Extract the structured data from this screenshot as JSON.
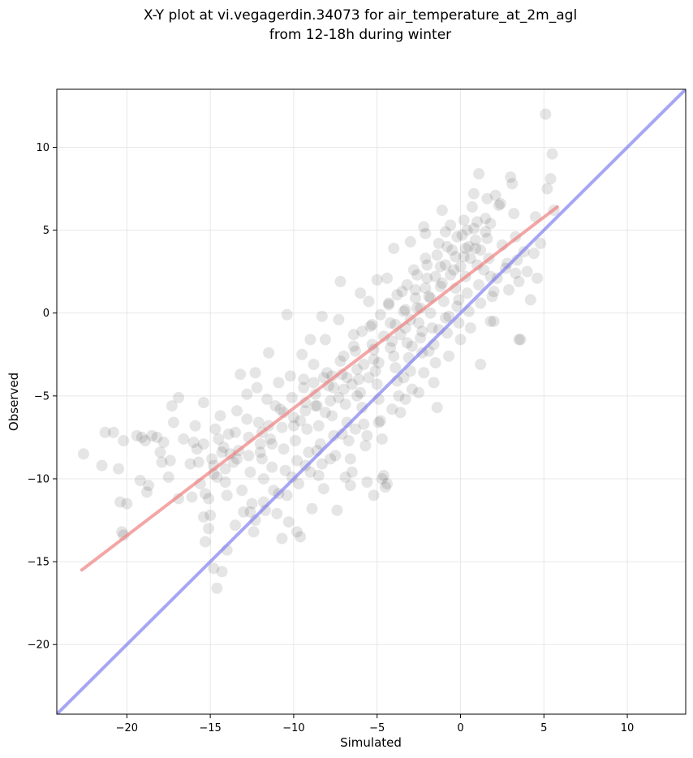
{
  "chart_data": {
    "type": "scatter",
    "title": [
      "X-Y plot at vi.vegagerdin.34073 for air_temperature_at_2m_agl",
      "from 12-18h during winter"
    ],
    "xlabel": "Simulated",
    "ylabel": "Observed",
    "xlim": [
      -24.2,
      13.5
    ],
    "ylim": [
      -24.2,
      13.5
    ],
    "xticks": [
      -20,
      -15,
      -10,
      -5,
      0,
      5,
      10
    ],
    "yticks": [
      -20,
      -15,
      -10,
      -5,
      0,
      5,
      10
    ],
    "xtick_labels": [
      "−20",
      "−15",
      "−10",
      "−5",
      "0",
      "5",
      "10"
    ],
    "ytick_labels": [
      "−20",
      "−15",
      "−10",
      "−5",
      "0",
      "5",
      "10"
    ],
    "grid": true,
    "colors": {
      "points": "#000000",
      "fit_line": "#f08080",
      "identity_line": "#8080f0"
    },
    "fit_line": {
      "x": [
        -22.7,
        5.8
      ],
      "y": [
        -15.5,
        6.4
      ]
    },
    "identity_line": {
      "x": [
        -24.2,
        13.5
      ],
      "y": [
        -24.2,
        13.5
      ]
    },
    "points": [
      [
        -22.6,
        -8.5
      ],
      [
        -21.5,
        -9.2
      ],
      [
        -21.3,
        -7.2
      ],
      [
        -20.8,
        -7.2
      ],
      [
        -20.5,
        -9.4
      ],
      [
        -20.2,
        -7.7
      ],
      [
        -20.4,
        -11.4
      ],
      [
        -20.0,
        -11.5
      ],
      [
        -20.2,
        -13.4
      ],
      [
        -20.3,
        -13.2
      ],
      [
        -19.4,
        -7.4
      ],
      [
        -19.1,
        -7.5
      ],
      [
        -18.9,
        -7.7
      ],
      [
        -18.7,
        -10.4
      ],
      [
        -19.2,
        -10.1
      ],
      [
        -18.8,
        -10.8
      ],
      [
        -18.5,
        -7.4
      ],
      [
        -18.2,
        -7.5
      ],
      [
        -17.8,
        -7.8
      ],
      [
        -18.0,
        -8.4
      ],
      [
        -17.9,
        -9.0
      ],
      [
        -17.4,
        -8.9
      ],
      [
        -17.5,
        -9.9
      ],
      [
        -17.2,
        -6.6
      ],
      [
        -17.3,
        -5.6
      ],
      [
        -16.9,
        -5.1
      ],
      [
        -16.6,
        -7.6
      ],
      [
        -16.2,
        -9.1
      ],
      [
        -16.0,
        -7.8
      ],
      [
        -15.9,
        -6.8
      ],
      [
        -15.7,
        -9.0
      ],
      [
        -15.8,
        -8.2
      ],
      [
        -15.6,
        -10.3
      ],
      [
        -15.4,
        -5.4
      ],
      [
        -15.4,
        -7.9
      ],
      [
        -15.3,
        -10.9
      ],
      [
        -15.1,
        -11.2
      ],
      [
        -15.0,
        -12.2
      ],
      [
        -15.1,
        -13.0
      ],
      [
        -15.4,
        -12.3
      ],
      [
        -15.3,
        -13.8
      ],
      [
        -14.9,
        -8.8
      ],
      [
        -14.8,
        -9.2
      ],
      [
        -14.6,
        -9.9
      ],
      [
        -14.7,
        -7.0
      ],
      [
        -14.5,
        -7.6
      ],
      [
        -14.4,
        -6.2
      ],
      [
        -14.3,
        -8.4
      ],
      [
        -14.2,
        -8.1
      ],
      [
        -14.1,
        -10.2
      ],
      [
        -14.0,
        -11.0
      ],
      [
        -14.3,
        -15.6
      ],
      [
        -14.6,
        -16.6
      ],
      [
        -14.8,
        -15.4
      ],
      [
        -14.0,
        -14.3
      ],
      [
        -13.9,
        -7.3
      ],
      [
        -13.8,
        -8.5
      ],
      [
        -13.6,
        -9.0
      ],
      [
        -13.5,
        -7.2
      ],
      [
        -13.4,
        -5.9
      ],
      [
        -13.3,
        -8.3
      ],
      [
        -13.1,
        -10.7
      ],
      [
        -13.0,
        -12.0
      ],
      [
        -12.8,
        -6.4
      ],
      [
        -12.7,
        -7.5
      ],
      [
        -12.6,
        -9.6
      ],
      [
        -12.5,
        -11.5
      ],
      [
        -12.4,
        -13.2
      ],
      [
        -12.3,
        -12.5
      ],
      [
        -12.2,
        -4.5
      ],
      [
        -12.1,
        -6.6
      ],
      [
        -12.0,
        -7.9
      ],
      [
        -11.9,
        -8.8
      ],
      [
        -11.8,
        -10.0
      ],
      [
        -11.7,
        -11.9
      ],
      [
        -11.6,
        -5.2
      ],
      [
        -11.5,
        -6.8
      ],
      [
        -11.4,
        -7.6
      ],
      [
        -11.3,
        -9.3
      ],
      [
        -11.2,
        -10.7
      ],
      [
        -11.0,
        -12.1
      ],
      [
        -10.9,
        -4.2
      ],
      [
        -10.8,
        -5.8
      ],
      [
        -10.7,
        -6.9
      ],
      [
        -10.6,
        -8.2
      ],
      [
        -10.5,
        -9.5
      ],
      [
        -10.4,
        -11.0
      ],
      [
        -10.3,
        -12.6
      ],
      [
        -10.2,
        -3.8
      ],
      [
        -10.1,
        -5.1
      ],
      [
        -10.0,
        -6.3
      ],
      [
        -9.9,
        -7.7
      ],
      [
        -9.8,
        -8.9
      ],
      [
        -9.7,
        -10.3
      ],
      [
        -9.6,
        -13.5
      ],
      [
        -9.8,
        -13.2
      ],
      [
        -9.5,
        -2.5
      ],
      [
        -9.4,
        -4.5
      ],
      [
        -9.3,
        -5.9
      ],
      [
        -9.2,
        -7.0
      ],
      [
        -9.1,
        -8.4
      ],
      [
        -9.0,
        -9.6
      ],
      [
        -8.9,
        -11.8
      ],
      [
        -8.8,
        -3.1
      ],
      [
        -8.7,
        -4.9
      ],
      [
        -8.6,
        -5.6
      ],
      [
        -8.5,
        -6.8
      ],
      [
        -8.4,
        -7.9
      ],
      [
        -8.3,
        -9.1
      ],
      [
        -8.2,
        -10.6
      ],
      [
        -8.1,
        -1.6
      ],
      [
        -8.0,
        -3.6
      ],
      [
        -7.9,
        -4.4
      ],
      [
        -7.8,
        -5.3
      ],
      [
        -7.7,
        -6.2
      ],
      [
        -7.6,
        -7.4
      ],
      [
        -7.5,
        -8.6
      ],
      [
        -7.4,
        -11.9
      ],
      [
        -7.3,
        -0.4
      ],
      [
        -7.2,
        -2.9
      ],
      [
        -7.1,
        -3.7
      ],
      [
        -7.0,
        -4.6
      ],
      [
        -6.9,
        -5.5
      ],
      [
        -6.8,
        -6.6
      ],
      [
        -6.7,
        -7.7
      ],
      [
        -6.6,
        -8.8
      ],
      [
        -6.5,
        -9.6
      ],
      [
        -6.4,
        -1.3
      ],
      [
        -6.3,
        -2.3
      ],
      [
        -6.2,
        -3.4
      ],
      [
        -6.1,
        -4.0
      ],
      [
        -6.0,
        -4.8
      ],
      [
        -5.9,
        -5.7
      ],
      [
        -5.8,
        -6.7
      ],
      [
        -5.7,
        -8.0
      ],
      [
        -5.6,
        -10.2
      ],
      [
        -5.5,
        0.7
      ],
      [
        -5.4,
        -0.8
      ],
      [
        -5.3,
        -1.9
      ],
      [
        -5.2,
        -2.8
      ],
      [
        -5.1,
        -3.5
      ],
      [
        -5.0,
        -4.3
      ],
      [
        -4.9,
        -5.2
      ],
      [
        -4.8,
        -6.5
      ],
      [
        -4.7,
        -7.6
      ],
      [
        -4.6,
        -9.8
      ],
      [
        -4.5,
        -10.5
      ],
      [
        -4.4,
        2.1
      ],
      [
        -4.3,
        0.5
      ],
      [
        -4.2,
        -0.6
      ],
      [
        -4.1,
        -1.7
      ],
      [
        -4.0,
        -2.6
      ],
      [
        -3.9,
        -3.3
      ],
      [
        -3.8,
        -4.1
      ],
      [
        -3.7,
        -5.0
      ],
      [
        -3.6,
        -6.0
      ],
      [
        -3.5,
        1.3
      ],
      [
        -3.4,
        0.1
      ],
      [
        -3.3,
        -0.9
      ],
      [
        -3.2,
        -1.8
      ],
      [
        -3.1,
        -2.7
      ],
      [
        -3.0,
        -3.5
      ],
      [
        -2.9,
        -4.6
      ],
      [
        -2.8,
        2.6
      ],
      [
        -2.7,
        1.4
      ],
      [
        -2.6,
        0.3
      ],
      [
        -2.5,
        -0.6
      ],
      [
        -2.4,
        -1.5
      ],
      [
        -2.3,
        -2.4
      ],
      [
        -2.2,
        -3.6
      ],
      [
        -2.1,
        3.3
      ],
      [
        -2.0,
        2.1
      ],
      [
        -1.9,
        1.0
      ],
      [
        -1.8,
        0.0
      ],
      [
        -1.7,
        -0.9
      ],
      [
        -1.6,
        -1.9
      ],
      [
        -1.5,
        -3.0
      ],
      [
        -1.4,
        -5.7
      ],
      [
        -1.3,
        4.2
      ],
      [
        -1.2,
        2.8
      ],
      [
        -1.1,
        1.8
      ],
      [
        -1.0,
        0.7
      ],
      [
        -0.9,
        -0.3
      ],
      [
        -0.8,
        -1.2
      ],
      [
        -0.7,
        -2.6
      ],
      [
        -0.6,
        5.3
      ],
      [
        -0.5,
        3.8
      ],
      [
        -0.4,
        2.6
      ],
      [
        -0.3,
        1.5
      ],
      [
        -0.2,
        0.4
      ],
      [
        -0.1,
        -0.6
      ],
      [
        0.0,
        -1.6
      ],
      [
        0.1,
        4.7
      ],
      [
        0.2,
        3.4
      ],
      [
        0.3,
        2.2
      ],
      [
        0.4,
        1.2
      ],
      [
        0.5,
        0.1
      ],
      [
        0.6,
        -0.9
      ],
      [
        0.7,
        6.4
      ],
      [
        0.8,
        5.1
      ],
      [
        0.9,
        3.9
      ],
      [
        1.0,
        2.9
      ],
      [
        1.1,
        1.7
      ],
      [
        1.2,
        0.6
      ],
      [
        1.1,
        8.4
      ],
      [
        1.2,
        -3.1
      ],
      [
        1.5,
        5.7
      ],
      [
        1.6,
        4.5
      ],
      [
        1.7,
        3.3
      ],
      [
        1.8,
        2.2
      ],
      [
        1.9,
        1.0
      ],
      [
        2.0,
        -0.5
      ],
      [
        2.1,
        7.1
      ],
      [
        2.3,
        6.5
      ],
      [
        2.5,
        4.1
      ],
      [
        2.7,
        2.7
      ],
      [
        2.9,
        1.4
      ],
      [
        3.0,
        8.2
      ],
      [
        3.1,
        7.8
      ],
      [
        3.2,
        6.0
      ],
      [
        3.3,
        4.6
      ],
      [
        3.4,
        3.2
      ],
      [
        3.5,
        1.9
      ],
      [
        3.6,
        -1.6
      ],
      [
        3.8,
        3.7
      ],
      [
        4.0,
        2.5
      ],
      [
        4.2,
        0.8
      ],
      [
        4.4,
        3.6
      ],
      [
        4.5,
        5.8
      ],
      [
        4.6,
        2.1
      ],
      [
        4.8,
        4.2
      ],
      [
        5.1,
        12.0
      ],
      [
        5.4,
        8.1
      ],
      [
        5.5,
        9.6
      ],
      [
        5.2,
        7.5
      ],
      [
        5.6,
        6.2
      ],
      [
        3.5,
        -1.6
      ],
      [
        1.8,
        -0.5
      ],
      [
        2.0,
        1.3
      ],
      [
        -5.2,
        -11.0
      ],
      [
        -4.4,
        -10.3
      ],
      [
        -4.7,
        -10.0
      ],
      [
        -6.9,
        -9.9
      ],
      [
        -6.6,
        -10.4
      ],
      [
        -8.5,
        -9.8
      ],
      [
        -10.7,
        -13.6
      ],
      [
        -16.9,
        -11.2
      ],
      [
        -16.1,
        -11.1
      ],
      [
        -12.3,
        -3.6
      ],
      [
        -11.5,
        -2.4
      ],
      [
        -10.4,
        -0.1
      ],
      [
        -9.0,
        -1.6
      ],
      [
        -8.3,
        -0.2
      ],
      [
        -7.2,
        1.9
      ],
      [
        -6.0,
        1.2
      ],
      [
        -5.0,
        2.0
      ],
      [
        -4.0,
        3.9
      ],
      [
        -3.0,
        4.3
      ],
      [
        -2.1,
        4.8
      ],
      [
        -1.1,
        6.2
      ],
      [
        0.2,
        5.6
      ],
      [
        -13.2,
        -3.7
      ],
      [
        -12.8,
        -4.9
      ],
      [
        -11.9,
        -7.2
      ],
      [
        -11.1,
        -5.6
      ],
      [
        -9.6,
        -6.5
      ],
      [
        -9.4,
        -4.0
      ],
      [
        -8.7,
        -5.6
      ],
      [
        -8.1,
        -6.0
      ],
      [
        -7.6,
        -4.5
      ],
      [
        -7.3,
        -5.1
      ],
      [
        -6.8,
        -3.9
      ],
      [
        -6.5,
        -4.3
      ],
      [
        -6.2,
        -5.0
      ],
      [
        -5.8,
        -3.1
      ],
      [
        -5.5,
        -3.9
      ],
      [
        -5.2,
        -2.2
      ],
      [
        -4.9,
        -3.0
      ],
      [
        -4.6,
        -1.4
      ],
      [
        -4.2,
        -2.1
      ],
      [
        -3.9,
        -0.7
      ],
      [
        -3.6,
        -1.3
      ],
      [
        -3.3,
        0.2
      ],
      [
        -3.0,
        -0.4
      ],
      [
        -2.7,
        0.9
      ],
      [
        -2.4,
        0.3
      ],
      [
        -2.1,
        1.5
      ],
      [
        -1.8,
        0.9
      ],
      [
        -1.5,
        2.2
      ],
      [
        -1.2,
        1.6
      ],
      [
        -0.9,
        2.9
      ],
      [
        -0.6,
        2.3
      ],
      [
        -0.3,
        3.4
      ],
      [
        0.0,
        2.8
      ],
      [
        0.3,
        3.9
      ],
      [
        0.6,
        3.3
      ],
      [
        0.9,
        4.4
      ],
      [
        1.2,
        3.8
      ],
      [
        1.5,
        4.9
      ],
      [
        1.8,
        5.4
      ],
      [
        -10.0,
        -6.8
      ],
      [
        -10.6,
        -6.0
      ],
      [
        -11.3,
        -7.9
      ],
      [
        -12.0,
        -8.4
      ],
      [
        -12.7,
        -8.6
      ],
      [
        -13.4,
        -8.8
      ],
      [
        -14.1,
        -9.4
      ],
      [
        -14.8,
        -9.7
      ],
      [
        -9.3,
        -5.4
      ],
      [
        -8.8,
        -4.2
      ],
      [
        -8.2,
        -3.9
      ],
      [
        -7.7,
        -3.8
      ],
      [
        -7.0,
        -2.6
      ],
      [
        -6.4,
        -2.0
      ],
      [
        -5.9,
        -1.1
      ],
      [
        -5.3,
        -0.7
      ],
      [
        -4.8,
        -0.1
      ],
      [
        -4.3,
        0.6
      ],
      [
        -3.8,
        1.1
      ],
      [
        -3.2,
        1.7
      ],
      [
        -2.6,
        2.3
      ],
      [
        -2.0,
        2.9
      ],
      [
        -1.4,
        3.5
      ],
      [
        -0.8,
        4.0
      ],
      [
        -0.2,
        4.6
      ],
      [
        0.4,
        5.0
      ],
      [
        1.0,
        5.5
      ],
      [
        -3.4,
        -3.9
      ],
      [
        -2.9,
        -2.0
      ],
      [
        -2.3,
        -1.1
      ],
      [
        -1.9,
        -2.3
      ],
      [
        -1.3,
        -1.0
      ],
      [
        -0.7,
        -0.2
      ],
      [
        -0.1,
        0.8
      ],
      [
        -1.6,
        -4.2
      ],
      [
        -2.5,
        -4.8
      ],
      [
        -3.3,
        -5.2
      ],
      [
        -4.1,
        -5.8
      ],
      [
        -4.9,
        -6.6
      ],
      [
        -5.6,
        -7.4
      ],
      [
        -6.3,
        -7.0
      ],
      [
        -7.1,
        -7.3
      ],
      [
        -7.8,
        -8.8
      ],
      [
        -8.6,
        -8.3
      ],
      [
        -9.3,
        -9.2
      ],
      [
        -10.1,
        -9.9
      ],
      [
        -10.9,
        -10.9
      ],
      [
        -11.8,
        -11.4
      ],
      [
        -12.6,
        -12.0
      ],
      [
        -13.5,
        -12.8
      ],
      [
        -2.2,
        5.2
      ],
      [
        -0.9,
        4.9
      ],
      [
        0.5,
        4.0
      ],
      [
        1.4,
        2.6
      ],
      [
        2.2,
        2.1
      ],
      [
        2.8,
        3.0
      ],
      [
        3.3,
        2.4
      ],
      [
        2.4,
        6.6
      ],
      [
        1.6,
        6.9
      ],
      [
        0.8,
        7.2
      ]
    ]
  }
}
